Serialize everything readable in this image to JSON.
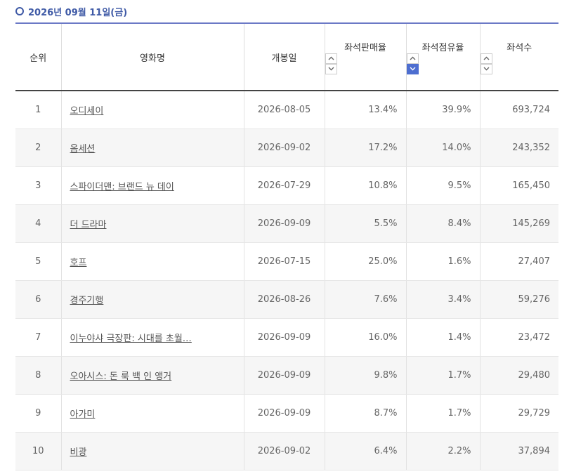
{
  "header": {
    "date": "2026년 09월 11일(금)"
  },
  "table": {
    "columns": [
      "순위",
      "영화명",
      "개봉일",
      "좌석판매율",
      "좌석점유율",
      "좌석수"
    ],
    "rows": [
      [
        "1",
        "오디세이",
        "2026-08-05",
        "13.4%",
        "39.9%",
        "693,724"
      ],
      [
        "2",
        "옴세션",
        "2026-09-02",
        "17.2%",
        "14.0%",
        "243,352"
      ],
      [
        "3",
        "스파이더맨: 브랜드 뉴 데이",
        "2026-07-29",
        "10.8%",
        "9.5%",
        "165,450"
      ],
      [
        "4",
        "더 드라마",
        "2026-09-09",
        "5.5%",
        "8.4%",
        "145,269"
      ],
      [
        "5",
        "호프",
        "2026-07-15",
        "25.0%",
        "1.6%",
        "27,407"
      ],
      [
        "6",
        "경주기행",
        "2026-08-26",
        "7.6%",
        "3.4%",
        "59,276"
      ],
      [
        "7",
        "이누야샤 극장판: 시대를 초월…",
        "2026-09-09",
        "16.0%",
        "1.4%",
        "23,472"
      ],
      [
        "8",
        "오아시스: 돈 룩 백 인 앵거",
        "2026-09-09",
        "9.8%",
        "1.7%",
        "29,480"
      ],
      [
        "9",
        "아가미",
        "2026-09-09",
        "8.7%",
        "1.7%",
        "29,729"
      ],
      [
        "10",
        "비광",
        "2026-09-02",
        "6.4%",
        "2.2%",
        "37,894"
      ]
    ]
  }
}
